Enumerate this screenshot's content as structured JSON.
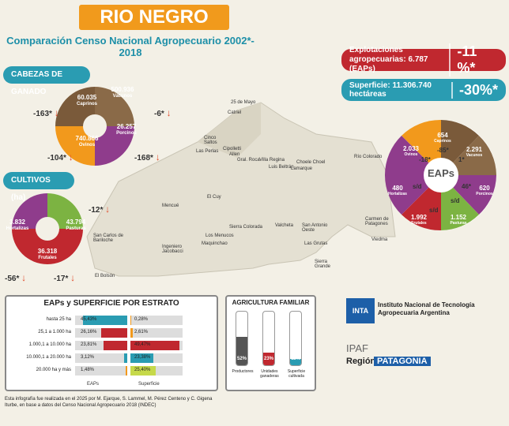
{
  "header": {
    "title": "RIO NEGRO",
    "subtitle": "Comparación Censo Nacional Agropecuario 2002*- 2018"
  },
  "kpis": [
    {
      "label": "Explotaciones agropecuarias: 6.787 (EAPs)",
      "change": "-11 %*",
      "color": "#c0282f"
    },
    {
      "label": "Superficie: 11.306.740 hectáreas",
      "change": "-30%*",
      "color": "#2a9cb2"
    }
  ],
  "cabezas": {
    "title": "CABEZAS DE GANADO",
    "items": [
      {
        "value": "60.035",
        "label": "Caprinos",
        "change": "-163*",
        "color": "#7a5a3a"
      },
      {
        "value": "500.936",
        "label": "Vacunos",
        "change": "-6*",
        "color": "#8a6a48"
      },
      {
        "value": "740.866",
        "label": "Ovinos",
        "change": "-104*",
        "color": "#f2991c"
      },
      {
        "value": "26.257",
        "label": "Porcinos",
        "change": "-168*",
        "color": "#8f3c8c"
      }
    ]
  },
  "cultivos": {
    "title": "CULTIVOS (ha)",
    "items": [
      {
        "value": "3.832",
        "label": "Hortalizas",
        "change": "-56*",
        "color": "#8f3c8c"
      },
      {
        "value": "43.794",
        "label": "Pasturas",
        "change": "-12*",
        "color": "#7cb342"
      },
      {
        "value": "36.318",
        "label": "Frutales",
        "change": "-17*",
        "color": "#c0282f"
      }
    ]
  },
  "eaps_wheel": {
    "center": "EAPs",
    "items": [
      {
        "value": "2.033",
        "label": "Ovinos",
        "change": "-18*",
        "color": "#f2991c"
      },
      {
        "value": "654",
        "label": "Caprinos",
        "change": "-85*",
        "color": "#7a5a3a"
      },
      {
        "value": "2.291",
        "label": "Vacunos",
        "change": "1*",
        "color": "#8a6a48"
      },
      {
        "value": "620",
        "label": "Porcinos",
        "change": "46*",
        "color": "#8f3c8c"
      },
      {
        "value": "1.152",
        "label": "Pasturas",
        "change": "s/d",
        "color": "#7cb342"
      },
      {
        "value": "1.992",
        "label": "Frutales",
        "change": "s/d",
        "color": "#c0282f"
      },
      {
        "value": "480",
        "label": "Hortalizas",
        "change": "s/d",
        "color": "#8f3c8c"
      }
    ]
  },
  "map": {
    "places": [
      "25 de Mayo",
      "Catriel",
      "Cinco Saltos",
      "Las Perlas",
      "Cipolletti",
      "Allen",
      "Gral. Roca",
      "Villa Regina",
      "Choele Choel",
      "Luis Beltrán",
      "Lamarque",
      "Río Colorado",
      "El Cuy",
      "Mencué",
      "Sierra Colorada",
      "Valcheta",
      "San Antonio Oeste",
      "Las Grutas",
      "Sierra Grande",
      "Los Menucos",
      "Maquinchao",
      "Ingeniero Jacobacci",
      "San Carlos de Bariloche",
      "El Bolsón",
      "Carmen de Patagones",
      "Viedma"
    ]
  },
  "table": {
    "title": "EAPs y SUPERFICIE POR ESTRATO",
    "rows": [
      {
        "label": "hasta 25 ha",
        "eaps": "45,43%",
        "sup": "0,28%"
      },
      {
        "label": "25,1 a 1.000 ha",
        "eaps": "26,16%",
        "sup": "2,61%"
      },
      {
        "label": "1.000,1 a 10.000 ha",
        "eaps": "23,81%",
        "sup": "49,47%"
      },
      {
        "label": "10.000,1 a 20.000 ha",
        "eaps": "3,12%",
        "sup": "23,38%"
      },
      {
        "label": "20.000 ha y más",
        "eaps": "1,48%",
        "sup": "25,40%"
      }
    ],
    "col_eaps": "EAPs",
    "col_sup": "Superficie"
  },
  "agri": {
    "title": "AGRICULTURA FAMILIAR",
    "bars": [
      {
        "label": "Productores",
        "value": "52%",
        "pct": 52,
        "color": "#555"
      },
      {
        "label": "Unidades ganaderas",
        "value": "23%",
        "pct": 23,
        "color": "#c0282f"
      },
      {
        "label": "Superficie cultivada",
        "value": "11%",
        "pct": 11,
        "color": "#2a9cb2"
      }
    ]
  },
  "logos": {
    "inta_mark": "INTA",
    "inta_text": "Instituto Nacional de Tecnología Agropecuaria Argentina",
    "ipaf": "IPAF",
    "region": "Región",
    "patagonia": "PATAGONIA"
  },
  "footer": "Esta infografía fue realizada en el 2025 por M. Ejarque, S. Lammel, M. Pérez Centeno y C. Gigena Iturbe, en base a datos del Censo Nacional Agropecuario 2018 (INDEC)"
}
